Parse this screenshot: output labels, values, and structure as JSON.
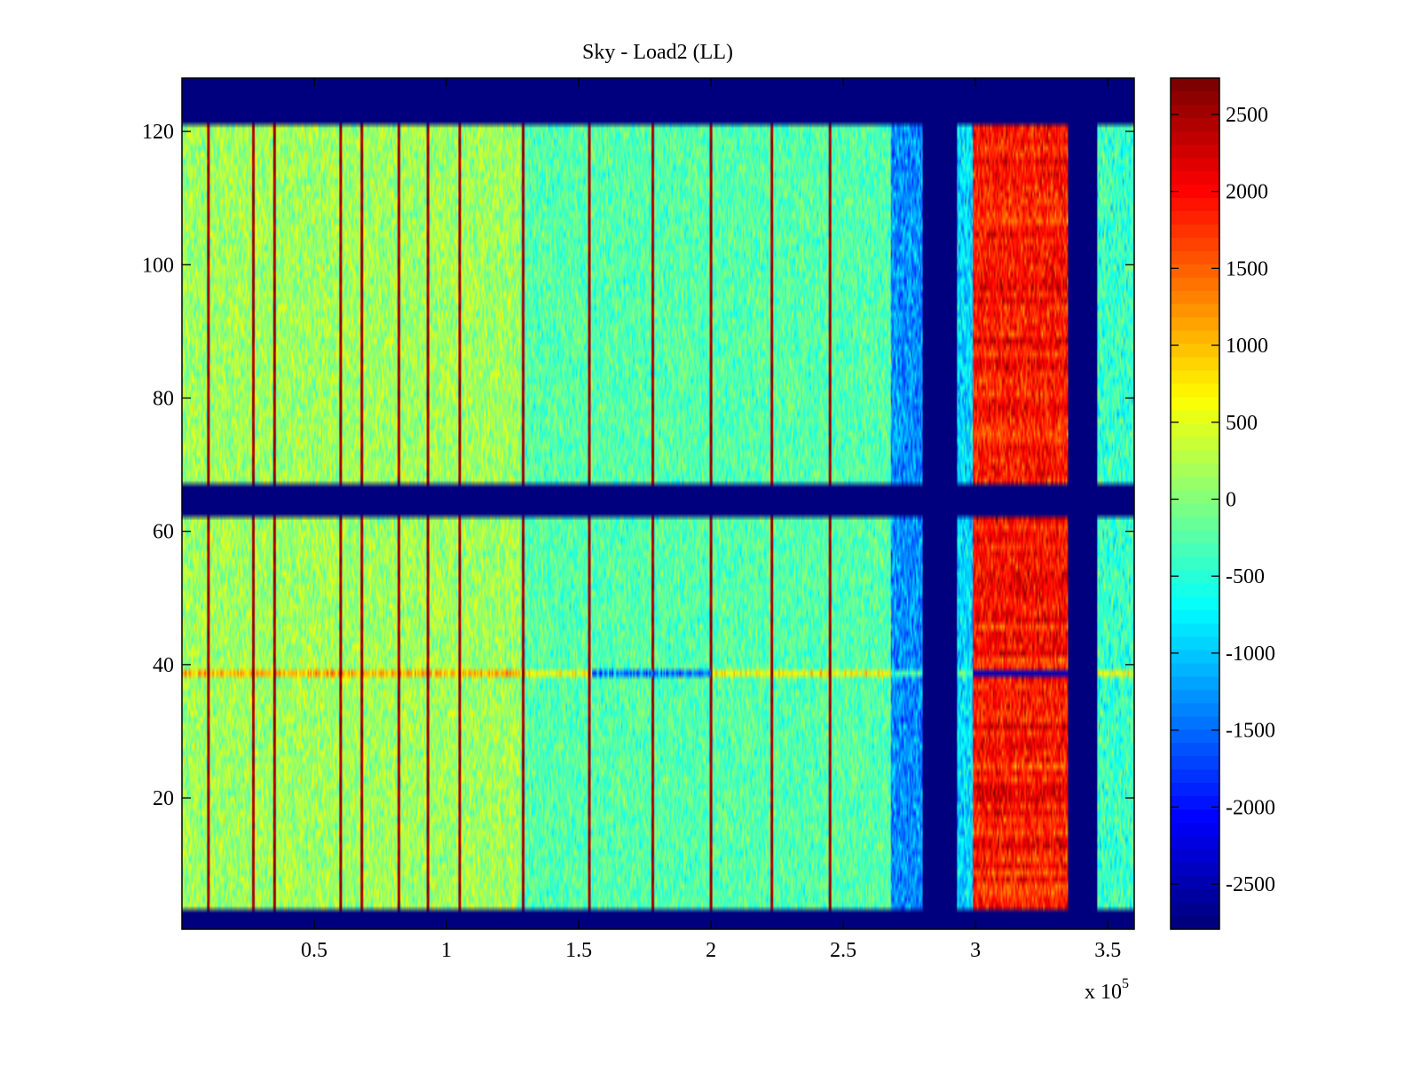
{
  "chart_data": {
    "type": "heatmap",
    "title": "Sky - Load2 (LL)",
    "xlabel": "",
    "ylabel": "",
    "x_multiplier_label": "x 10",
    "x_multiplier_exponent": "5",
    "xlim": [
      0,
      3.6
    ],
    "ylim": [
      0.3,
      128
    ],
    "x_ticks": [
      0.5,
      1,
      1.5,
      2,
      2.5,
      3,
      3.5
    ],
    "x_tick_labels": [
      "0.5",
      "1",
      "1.5",
      "2",
      "2.5",
      "3",
      "3.5"
    ],
    "y_ticks": [
      20,
      40,
      60,
      80,
      100,
      120
    ],
    "y_tick_labels": [
      "20",
      "40",
      "60",
      "80",
      "100",
      "120"
    ],
    "colormap": "jet",
    "colorbar": {
      "range": [
        -2794,
        2736
      ],
      "ticks": [
        2500,
        2000,
        1500,
        1000,
        500,
        0,
        -500,
        -1000,
        -1500,
        -2000,
        -2500
      ],
      "tick_labels": [
        "2500",
        "2000",
        "1500",
        "1000",
        "500",
        "0",
        "-500",
        "-1000",
        "-1500",
        "-2000",
        "-2500"
      ],
      "placement": "right"
    },
    "masked_value": -2794,
    "masked_rows": [
      {
        "from": 121,
        "to": 128
      },
      {
        "from": 62,
        "to": 67
      },
      {
        "from": 0.3,
        "to": 3.5
      }
    ],
    "masked_columns": [
      {
        "from": 2.8,
        "to": 2.93
      },
      {
        "from": 3.35,
        "to": 3.46
      }
    ],
    "regions": [
      {
        "x_from": 0,
        "x_to": 1.28,
        "mean_value": 150,
        "noise": 450,
        "description": "yellow-green noisy band"
      },
      {
        "x_from": 1.28,
        "x_to": 2.68,
        "mean_value": -250,
        "noise": 400,
        "description": "green-cyan band"
      },
      {
        "x_from": 2.68,
        "x_to": 2.8,
        "mean_value": -1300,
        "noise": 500,
        "description": "blue-cyan edge"
      },
      {
        "x_from": 2.93,
        "x_to": 2.99,
        "mean_value": -900,
        "noise": 500,
        "description": "cyan transition"
      },
      {
        "x_from": 2.99,
        "x_to": 3.35,
        "mean_value": 1900,
        "noise": 450,
        "description": "red/orange hot band"
      },
      {
        "x_from": 3.46,
        "x_to": 3.6,
        "mean_value": -400,
        "noise": 500,
        "description": "cyan-green band"
      }
    ],
    "vertical_stripes_x": [
      0.1,
      0.27,
      0.35,
      0.6,
      0.68,
      0.82,
      0.93,
      1.05,
      1.29,
      1.54,
      1.78,
      2.0,
      2.23,
      2.45
    ],
    "anomaly_row": {
      "y": 39,
      "description": "horizontal artifact line near y=39"
    }
  }
}
